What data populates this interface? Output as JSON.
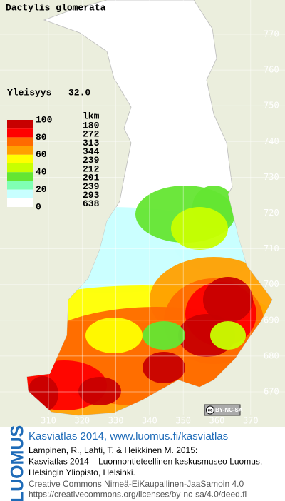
{
  "title": "Dactylis glomerata",
  "frequency": {
    "label": "Yleisyys",
    "value": "32.0"
  },
  "legend": {
    "scale_labels": [
      "100",
      "80",
      "60",
      "40",
      "20",
      "0"
    ],
    "count_header": "lkm",
    "counts": [
      180,
      272,
      313,
      344,
      239,
      212,
      201,
      239,
      293,
      638
    ],
    "colors": [
      "#c80000",
      "#ff0000",
      "#ff6a00",
      "#ffa000",
      "#ffff00",
      "#c8ff00",
      "#64e632",
      "#80ffb4",
      "#c8ffff",
      "#ffffff"
    ]
  },
  "grid": {
    "northing": [
      770,
      760,
      750,
      740,
      730,
      720,
      710,
      700,
      690,
      680,
      670
    ],
    "easting": [
      310,
      320,
      330,
      340,
      350,
      360,
      370
    ]
  },
  "badge": {
    "icon": "cc",
    "text": "BY-NC-SA"
  },
  "footer": {
    "logo": "LUOMUS",
    "heading": "Kasviatlas 2014, www.luomus.fi/kasviatlas",
    "citation": [
      "Lampinen, R., Lahti, T. & Heikkinen M. 2015:",
      "Kasviatlas 2014 – Luonnontieteellinen keskusmuseo Luomus,",
      "Helsingin Yliopisto, Helsinki."
    ],
    "license": [
      "Creative Commons Nimeä-EiKaupallinen-JaaSamoin 4.0",
      "https://creativecommons.org/licenses/by-nc-sa/4.0/deed.fi"
    ]
  }
}
